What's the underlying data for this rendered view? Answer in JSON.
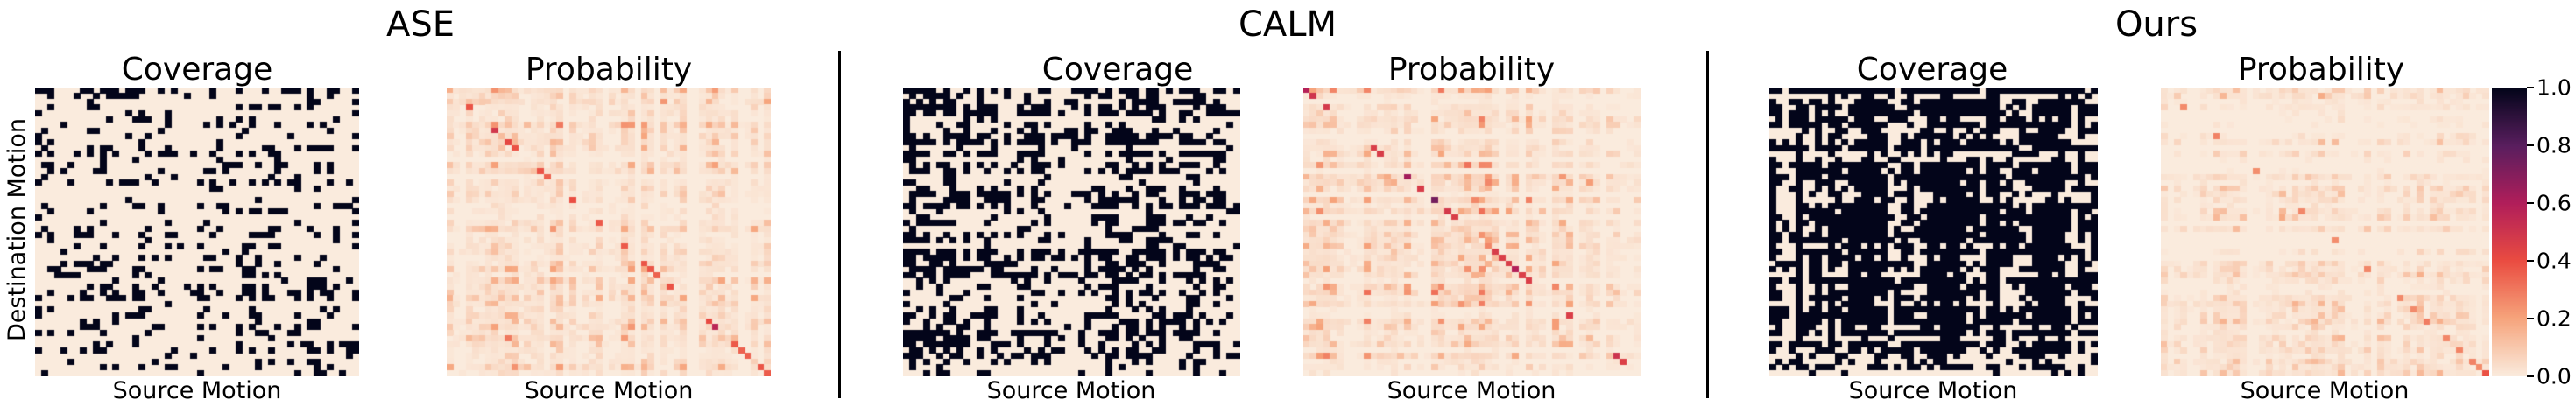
{
  "groups": [
    {
      "title": "ASE",
      "panels": [
        {
          "title": "Coverage",
          "xlabel": "Source Motion",
          "kind": "coverage",
          "density": 0.18
        },
        {
          "title": "Probability",
          "xlabel": "Source Motion",
          "kind": "probability",
          "intensity": 0.35
        }
      ]
    },
    {
      "title": "CALM",
      "panels": [
        {
          "title": "Coverage",
          "xlabel": "Source Motion",
          "kind": "coverage",
          "density": 0.4
        },
        {
          "title": "Probability",
          "xlabel": "Source Motion",
          "kind": "probability",
          "intensity": 0.45
        }
      ]
    },
    {
      "title": "Ours",
      "panels": [
        {
          "title": "Coverage",
          "xlabel": "Source Motion",
          "kind": "coverage",
          "density": 0.62
        },
        {
          "title": "Probability",
          "xlabel": "Source Motion",
          "kind": "probability",
          "intensity": 0.25
        }
      ]
    }
  ],
  "ylabel": "Destination Motion",
  "colorbar": {
    "ticks": [
      "1.0",
      "0.8",
      "0.6",
      "0.4",
      "0.2",
      "0.0"
    ],
    "colors": [
      "#faebdd",
      "#f6a47c",
      "#ea4c41",
      "#b11e5a",
      "#591e5e",
      "#03051a"
    ]
  },
  "chart_data": {
    "type": "heatmap",
    "grid_size": 50,
    "colorbar_range": [
      0.0,
      1.0
    ],
    "panels": [
      {
        "group": "ASE",
        "title": "Coverage",
        "xlabel": "Source Motion",
        "ylabel": "Destination Motion"
      },
      {
        "group": "ASE",
        "title": "Probability",
        "xlabel": "Source Motion"
      },
      {
        "group": "CALM",
        "title": "Coverage",
        "xlabel": "Source Motion"
      },
      {
        "group": "CALM",
        "title": "Probability",
        "xlabel": "Source Motion"
      },
      {
        "group": "Ours",
        "title": "Coverage",
        "xlabel": "Source Motion"
      },
      {
        "group": "Ours",
        "title": "Probability",
        "xlabel": "Source Motion"
      }
    ]
  }
}
